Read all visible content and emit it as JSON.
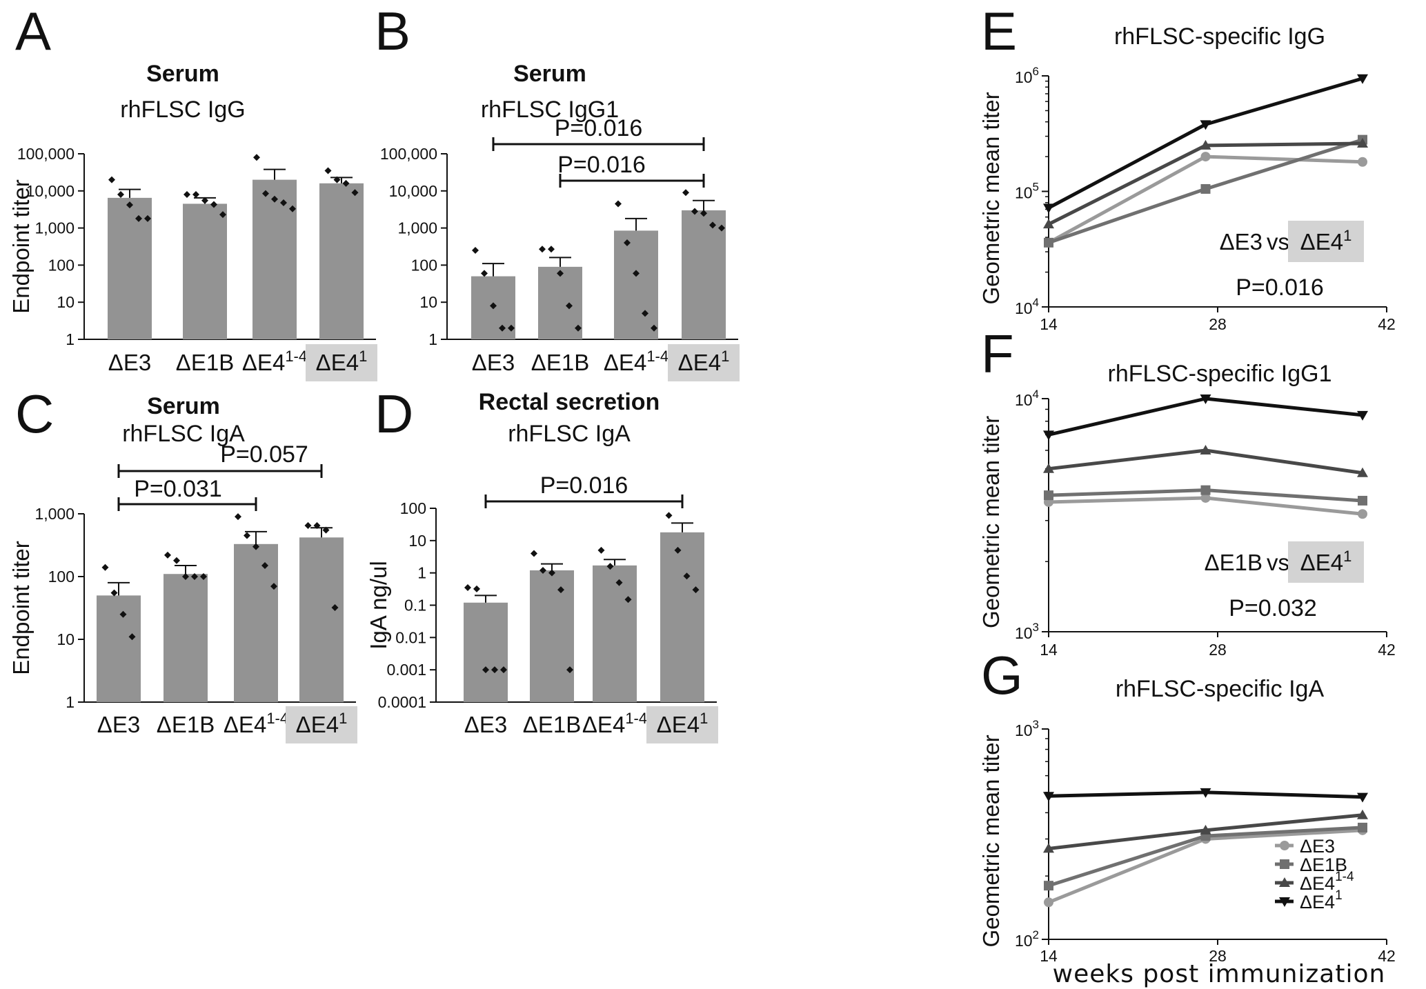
{
  "chart_data": [
    {
      "panel": "A",
      "type": "bar",
      "scale": "log",
      "title": "Serum",
      "subtitle": "rhFLSC IgG",
      "ylabel": "Endpoint titer",
      "yticks": [
        "1",
        "10",
        "100",
        "1,000",
        "10,000",
        "100,000"
      ],
      "ylim": [
        1,
        100000
      ],
      "categories": [
        {
          "base": "ΔE3",
          "sup": ""
        },
        {
          "base": "ΔE1B",
          "sup": ""
        },
        {
          "base": "ΔE4",
          "sup": "1-4"
        },
        {
          "base": "ΔE4",
          "sup": "1"
        }
      ],
      "highlight_index": 3,
      "values": [
        6500,
        4500,
        20000,
        16000
      ],
      "errors": [
        11000,
        6500,
        38000,
        23000
      ],
      "points": [
        [
          20000,
          8000,
          4200,
          1800,
          1800
        ],
        [
          8000,
          8000,
          5500,
          4300,
          2300
        ],
        [
          80000,
          8500,
          6000,
          4800,
          3300
        ],
        [
          35000,
          20000,
          16000,
          9000
        ]
      ],
      "comparisons": []
    },
    {
      "panel": "B",
      "type": "bar",
      "scale": "log",
      "title": "Serum",
      "subtitle": "rhFLSC IgG1",
      "ylabel": "",
      "yticks": [
        "1",
        "10",
        "100",
        "1,000",
        "10,000",
        "100,000"
      ],
      "ylim": [
        1,
        100000
      ],
      "categories": [
        {
          "base": "ΔE3",
          "sup": ""
        },
        {
          "base": "ΔE1B",
          "sup": ""
        },
        {
          "base": "ΔE4",
          "sup": "1-4"
        },
        {
          "base": "ΔE4",
          "sup": "1"
        }
      ],
      "highlight_index": 3,
      "values": [
        50,
        90,
        850,
        3000
      ],
      "errors": [
        110,
        160,
        1800,
        5500
      ],
      "points": [
        [
          250,
          60,
          8,
          2,
          2
        ],
        [
          270,
          270,
          60,
          8,
          2
        ],
        [
          4500,
          400,
          60,
          5,
          2
        ],
        [
          9000,
          2800,
          2500,
          1200,
          1000
        ]
      ],
      "comparisons": [
        {
          "from": 0,
          "to": 3,
          "label": "P=0.016"
        },
        {
          "from": 1,
          "to": 3,
          "label": "P=0.016"
        }
      ]
    },
    {
      "panel": "C",
      "type": "bar",
      "scale": "log",
      "title": "Serum",
      "subtitle": "rhFLSC IgA",
      "ylabel": "Endpoint titer",
      "yticks": [
        "1",
        "10",
        "100",
        "1,000"
      ],
      "ylim": [
        1,
        1000
      ],
      "categories": [
        {
          "base": "ΔE3",
          "sup": ""
        },
        {
          "base": "ΔE1B",
          "sup": ""
        },
        {
          "base": "ΔE4",
          "sup": "1-4"
        },
        {
          "base": "ΔE4",
          "sup": "1"
        }
      ],
      "highlight_index": 3,
      "values": [
        50,
        110,
        330,
        420
      ],
      "errors": [
        80,
        150,
        520,
        600
      ],
      "points": [
        [
          140,
          55,
          25,
          11
        ],
        [
          220,
          180,
          100,
          100,
          100
        ],
        [
          900,
          450,
          300,
          150,
          70
        ],
        [
          650,
          650,
          550,
          32
        ]
      ],
      "comparisons": [
        {
          "from": 0,
          "to": 3,
          "label": "P=0.057"
        },
        {
          "from": 0,
          "to": 2,
          "label": "P=0.031"
        }
      ]
    },
    {
      "panel": "D",
      "type": "bar",
      "scale": "log",
      "title": "Rectal secretion",
      "subtitle": "rhFLSC IgA",
      "ylabel": "IgA ng/ul",
      "yticks": [
        "0.0001",
        "0.001",
        "0.01",
        "0.1",
        "1",
        "10",
        "100"
      ],
      "ylim": [
        0.0001,
        100
      ],
      "categories": [
        {
          "base": "ΔE3",
          "sup": ""
        },
        {
          "base": "ΔE1B",
          "sup": ""
        },
        {
          "base": "ΔE4",
          "sup": "1-4"
        },
        {
          "base": "ΔE4",
          "sup": "1"
        }
      ],
      "highlight_index": 3,
      "values": [
        0.12,
        1.2,
        1.7,
        18
      ],
      "errors": [
        0.2,
        1.9,
        2.6,
        35
      ],
      "points": [
        [
          0.35,
          0.32,
          0.001,
          0.001,
          0.001
        ],
        [
          4,
          1.2,
          1,
          0.3,
          0.001
        ],
        [
          5,
          1.6,
          0.5,
          0.15
        ],
        [
          60,
          5,
          0.8,
          0.3
        ]
      ],
      "comparisons": [
        {
          "from": 0,
          "to": 3,
          "label": "P=0.016"
        }
      ]
    },
    {
      "panel": "E",
      "type": "line",
      "scale": "log",
      "title": "rhFLSC-specific IgG",
      "ylabel": "Geometric mean titer",
      "x": [
        14,
        27,
        40
      ],
      "xticks": [
        "14",
        "28",
        "42"
      ],
      "xlim": [
        14,
        42
      ],
      "ylim": [
        10000,
        1000000
      ],
      "yticks": [
        {
          "base": "10",
          "exp": "4"
        },
        {
          "base": "10",
          "exp": "5"
        },
        {
          "base": "10",
          "exp": "6"
        }
      ],
      "series": [
        {
          "name": "ΔE3",
          "values": [
            36000,
            200000,
            180000
          ]
        },
        {
          "name": "ΔE1B",
          "values": [
            36000,
            105000,
            280000
          ]
        },
        {
          "name": "ΔE4(1-4)",
          "values": [
            52000,
            250000,
            260000
          ]
        },
        {
          "name": "ΔE4(1)",
          "values": [
            72000,
            380000,
            950000
          ]
        }
      ],
      "comparison": {
        "a": "ΔE3",
        "vs": "vs",
        "b_base": "ΔE4",
        "b_sup": "1",
        "p": "P=0.016"
      }
    },
    {
      "panel": "F",
      "type": "line",
      "scale": "log",
      "title": "rhFLSC-specific IgG1",
      "ylabel": "Geometric mean titer",
      "x": [
        14,
        27,
        40
      ],
      "xticks": [
        "14",
        "28",
        "42"
      ],
      "xlim": [
        14,
        42
      ],
      "ylim": [
        1000,
        10000
      ],
      "yticks": [
        {
          "base": "10",
          "exp": "3"
        },
        {
          "base": "10",
          "exp": "4"
        }
      ],
      "series": [
        {
          "name": "ΔE3",
          "values": [
            3600,
            3750,
            3200
          ]
        },
        {
          "name": "ΔE1B",
          "values": [
            3850,
            4050,
            3650
          ]
        },
        {
          "name": "ΔE4(1-4)",
          "values": [
            5000,
            6000,
            4800
          ]
        },
        {
          "name": "ΔE4(1)",
          "values": [
            7000,
            10000,
            8500
          ]
        }
      ],
      "comparison": {
        "a": "ΔE1B",
        "vs": "vs",
        "b_base": "ΔE4",
        "b_sup": "1",
        "p": "P=0.032"
      }
    },
    {
      "panel": "G",
      "type": "line",
      "scale": "log",
      "title": "rhFLSC-specific IgA",
      "ylabel": "Geometric mean titer",
      "xlabel": "weeks post immunization",
      "x": [
        14,
        27,
        40
      ],
      "xticks": [
        "14",
        "28",
        "42"
      ],
      "xlim": [
        14,
        42
      ],
      "ylim": [
        100,
        1000
      ],
      "yticks": [
        {
          "base": "10",
          "exp": "2"
        },
        {
          "base": "10",
          "exp": "3"
        }
      ],
      "series": [
        {
          "name": "ΔE3",
          "values": [
            150,
            300,
            330
          ]
        },
        {
          "name": "ΔE1B",
          "values": [
            180,
            310,
            340
          ]
        },
        {
          "name": "ΔE4(1-4)",
          "values": [
            270,
            330,
            390
          ]
        },
        {
          "name": "ΔE4(1)",
          "values": [
            480,
            500,
            475
          ]
        }
      ],
      "legend": [
        {
          "base": "ΔE3",
          "sup": ""
        },
        {
          "base": "ΔE1B",
          "sup": ""
        },
        {
          "base": "ΔE4",
          "sup": "1-4"
        },
        {
          "base": "ΔE4",
          "sup": "1"
        }
      ]
    }
  ],
  "colors": {
    "bar": "#939393",
    "highlight_box": "#d3d3d3",
    "series": [
      "#9a9a9a",
      "#707070",
      "#484848",
      "#111111"
    ]
  }
}
